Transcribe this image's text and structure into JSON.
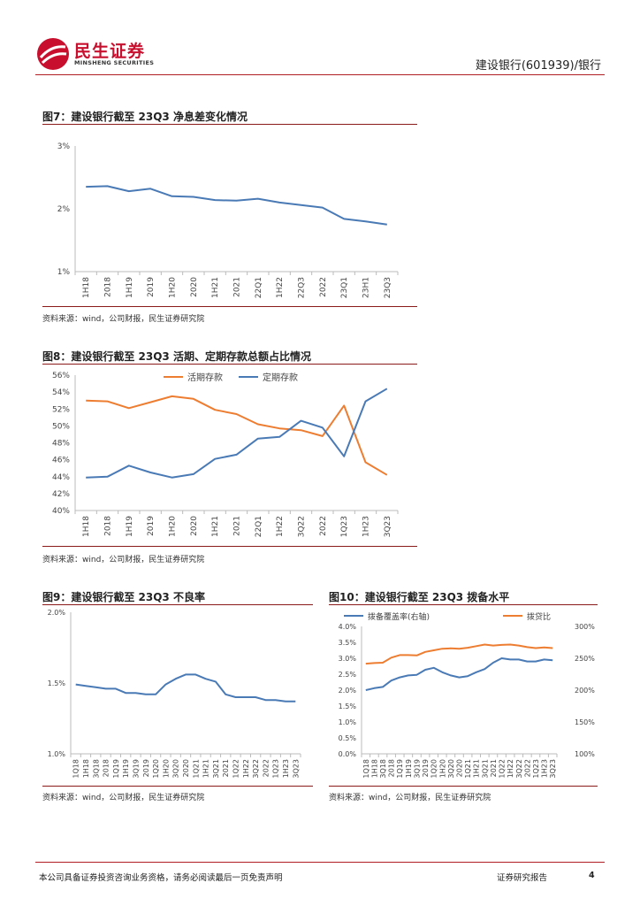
{
  "header": {
    "logo_cn": "民生证券",
    "logo_en": "MINSHENG SECURITIES",
    "report_subject": "建设银行(601939)/银行"
  },
  "footer": {
    "disclaimer": "本公司具备证券投资咨询业务资格，请务必阅读最后一页免责声明",
    "report_type": "证券研究报告",
    "page_number": "4"
  },
  "figures": {
    "fig7": {
      "title": "图7：建设银行截至 23Q3 净息差变化情况",
      "source": "资料来源：wind，公司财报，民生证券研究院"
    },
    "fig8": {
      "title": "图8：建设银行截至 23Q3 活期、定期存款总额占比情况",
      "source": "资料来源：wind，公司财报，民生证券研究院"
    },
    "fig9": {
      "title": "图9：建设银行截至 23Q3 不良率",
      "source": "资料来源：wind，公司财报，民生证券研究院"
    },
    "fig10": {
      "title": "图10：建设银行截至 23Q3 拨备水平",
      "source": "资料来源：wind，公司财报，民生证券研究院"
    }
  },
  "colors": {
    "brand": "#c8102e",
    "blue": "#4a7ab5",
    "orange": "#ed7d31"
  },
  "chart_data": [
    {
      "id": "fig7",
      "type": "line",
      "title": "建设银行截至 23Q3 净息差变化情况",
      "categories": [
        "1H18",
        "2018",
        "1H19",
        "2019",
        "1H20",
        "2020",
        "1H21",
        "2021",
        "22Q1",
        "1H22",
        "22Q3",
        "2022",
        "23Q1",
        "23H1",
        "23Q3"
      ],
      "series": [
        {
          "name": "净息差",
          "values": [
            2.35,
            2.36,
            2.28,
            2.32,
            2.2,
            2.19,
            2.14,
            2.13,
            2.16,
            2.1,
            2.06,
            2.02,
            1.84,
            1.8,
            1.75
          ]
        }
      ],
      "ylim": [
        1,
        3
      ],
      "yticks": [
        1,
        2,
        3
      ],
      "ytick_labels": [
        "1%",
        "2%",
        "3%"
      ]
    },
    {
      "id": "fig8",
      "type": "line",
      "title": "建设银行截至 23Q3 活期、定期存款总额占比情况",
      "categories": [
        "1H18",
        "2018",
        "1H19",
        "2019",
        "1H20",
        "2020",
        "1H21",
        "2021",
        "22Q1",
        "1H22",
        "3Q22",
        "2022",
        "1Q23",
        "1H23",
        "3Q23"
      ],
      "series": [
        {
          "name": "活期存款",
          "color": "#ed7d31",
          "values": [
            53.0,
            52.9,
            52.1,
            52.8,
            53.5,
            53.2,
            51.9,
            51.4,
            50.2,
            49.7,
            49.5,
            48.8,
            52.4,
            45.7,
            44.2
          ]
        },
        {
          "name": "定期存款",
          "color": "#4a7ab5",
          "values": [
            43.9,
            44.0,
            45.3,
            44.5,
            43.9,
            44.3,
            46.1,
            46.6,
            48.5,
            48.7,
            50.6,
            49.8,
            46.4,
            52.9,
            54.4
          ]
        }
      ],
      "ylim": [
        40,
        56
      ],
      "yticks": [
        40,
        42,
        44,
        46,
        48,
        50,
        52,
        54,
        56
      ],
      "ytick_labels": [
        "40%",
        "42%",
        "44%",
        "46%",
        "48%",
        "50%",
        "52%",
        "54%",
        "56%"
      ],
      "legend": "top"
    },
    {
      "id": "fig9",
      "type": "line",
      "title": "建设银行截至 23Q3 不良率",
      "categories": [
        "1Q18",
        "1H18",
        "3Q18",
        "2018",
        "1Q19",
        "1H19",
        "3Q19",
        "2019",
        "1Q20",
        "1H20",
        "3Q20",
        "2020",
        "1Q21",
        "1H21",
        "3Q21",
        "2021",
        "1Q22",
        "1H22",
        "3Q22",
        "2022",
        "1Q23",
        "1H23",
        "3Q23"
      ],
      "series": [
        {
          "name": "不良率",
          "values": [
            1.49,
            1.48,
            1.47,
            1.46,
            1.46,
            1.43,
            1.43,
            1.42,
            1.42,
            1.49,
            1.53,
            1.56,
            1.56,
            1.53,
            1.51,
            1.42,
            1.4,
            1.4,
            1.4,
            1.38,
            1.38,
            1.37,
            1.37
          ]
        }
      ],
      "ylim": [
        1.0,
        2.0
      ],
      "yticks": [
        1.0,
        1.5,
        2.0
      ],
      "ytick_labels": [
        "1.0%",
        "1.5%",
        "2.0%"
      ]
    },
    {
      "id": "fig10",
      "type": "line",
      "title": "建设银行截至 23Q3 拨备水平",
      "categories": [
        "1Q18",
        "1H18",
        "3Q18",
        "2018",
        "1Q19",
        "1H19",
        "3Q19",
        "2019",
        "1Q20",
        "1H20",
        "3Q20",
        "2020",
        "1Q21",
        "1H21",
        "3Q21",
        "2021",
        "1Q22",
        "1H22",
        "3Q22",
        "2022",
        "1Q23",
        "1H23",
        "3Q23"
      ],
      "series": [
        {
          "name": "拨备覆盖率(右轴)",
          "color": "#4a7ab5",
          "axis": "right",
          "values": [
            200,
            203,
            205,
            215,
            220,
            223,
            224,
            232,
            235,
            228,
            223,
            220,
            222,
            228,
            233,
            243,
            250,
            248,
            248,
            245,
            245,
            248,
            247
          ]
        },
        {
          "name": "拨贷比",
          "color": "#ed7d31",
          "axis": "left",
          "values": [
            2.83,
            2.85,
            2.86,
            3.02,
            3.1,
            3.1,
            3.09,
            3.2,
            3.25,
            3.3,
            3.31,
            3.3,
            3.33,
            3.38,
            3.43,
            3.4,
            3.42,
            3.43,
            3.4,
            3.35,
            3.32,
            3.34,
            3.32
          ]
        }
      ],
      "ylim_left": [
        0,
        4
      ],
      "yticks_left": [
        0,
        0.5,
        1,
        1.5,
        2,
        2.5,
        3,
        3.5,
        4
      ],
      "ytick_labels_left": [
        "0.0%",
        "0.5%",
        "1.0%",
        "1.5%",
        "2.0%",
        "2.5%",
        "3.0%",
        "3.5%",
        "4.0%"
      ],
      "ylim_right": [
        100,
        300
      ],
      "yticks_right": [
        100,
        150,
        200,
        250,
        300
      ],
      "ytick_labels_right": [
        "100%",
        "150%",
        "200%",
        "250%",
        "300%"
      ],
      "legend": "top"
    }
  ]
}
